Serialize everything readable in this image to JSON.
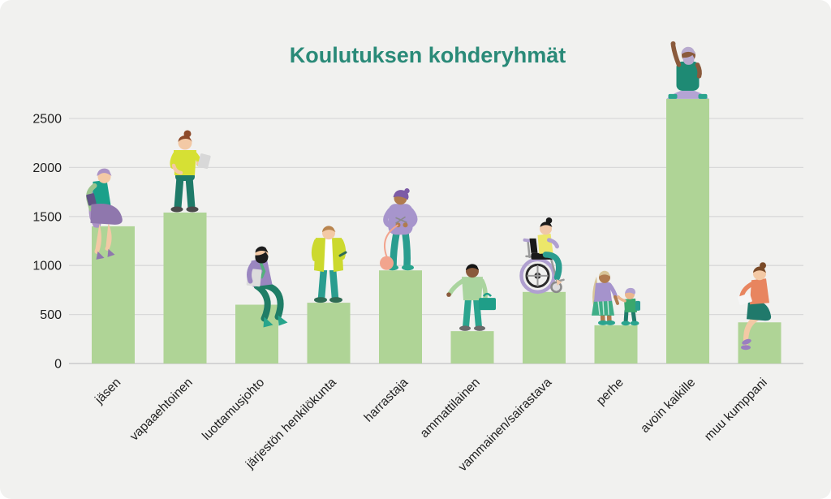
{
  "frame": {
    "page_background": "#ffffff",
    "card_background": "#f1f1ef"
  },
  "chart_data": {
    "type": "bar",
    "title": "Koulutuksen kohderyhmät",
    "title_color": "#2a8a78",
    "bar_color": "#afd496",
    "gridline_color": "#d9d9d9",
    "baseline_color": "#c4c4c4",
    "axis_text_color": "#1f1f1f",
    "categories": [
      "jäsen",
      "vapaaehtoinen",
      "luottamusjohto",
      "järjestön henkilökunta",
      "harrastaja",
      "ammattilainen",
      "vammainen/sairastava",
      "perhe",
      "avoin kaikille",
      "muu kumppani"
    ],
    "values": [
      1400,
      1540,
      600,
      620,
      950,
      330,
      730,
      390,
      2700,
      420
    ],
    "yticks": [
      0,
      500,
      1000,
      1500,
      2000,
      2500
    ],
    "ylim": [
      0,
      2800
    ],
    "xlabel": "",
    "ylabel": "",
    "grid": "horizontal",
    "legend": "none",
    "illustrations": [
      "sitting-woman-reading-book",
      "standing-woman-with-tablet",
      "sitting-bearded-man-with-laptop",
      "standing-person-in-long-cardigan",
      "standing-person-knitting-yarn",
      "standing-man-with-briefcase",
      "person-in-wheelchair",
      "parent-holding-child-hand",
      "person-sitting-cross-legged-waving",
      "sitting-woman-with-laptop"
    ]
  }
}
